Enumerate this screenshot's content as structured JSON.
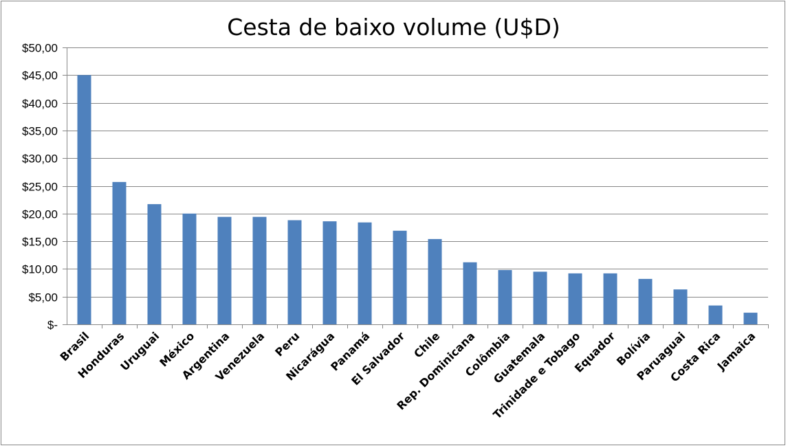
{
  "chart_data": {
    "type": "bar",
    "title": "Cesta de baixo volume (U$D)",
    "xlabel": "",
    "ylabel": "",
    "ylim": [
      0,
      50
    ],
    "yticks": [
      0,
      5,
      10,
      15,
      20,
      25,
      30,
      35,
      40,
      45,
      50
    ],
    "ytick_labels": [
      "$-",
      "$5,00",
      "$10,00",
      "$15,00",
      "$20,00",
      "$25,00",
      "$30,00",
      "$35,00",
      "$40,00",
      "$45,00",
      "$50,00"
    ],
    "categories": [
      "Brasil",
      "Honduras",
      "Uruguai",
      "México",
      "Argentina",
      "Venezuela",
      "Peru",
      "Nicarágua",
      "Panamá",
      "El Salvador",
      "Chile",
      "Rep. Dominicana",
      "Colômbia",
      "Guatemala",
      "Trinidade e Tobago",
      "Equador",
      "Bolívia",
      "Paruaguai",
      "Costa Rica",
      "Jamaica"
    ],
    "values": [
      45.0,
      25.7,
      21.7,
      20.0,
      19.4,
      19.4,
      18.8,
      18.6,
      18.4,
      16.9,
      15.4,
      11.2,
      9.8,
      9.5,
      9.2,
      9.2,
      8.2,
      6.3,
      3.4,
      2.1
    ],
    "grid": true,
    "legend": "none",
    "bar_color": "#4F81BD"
  }
}
